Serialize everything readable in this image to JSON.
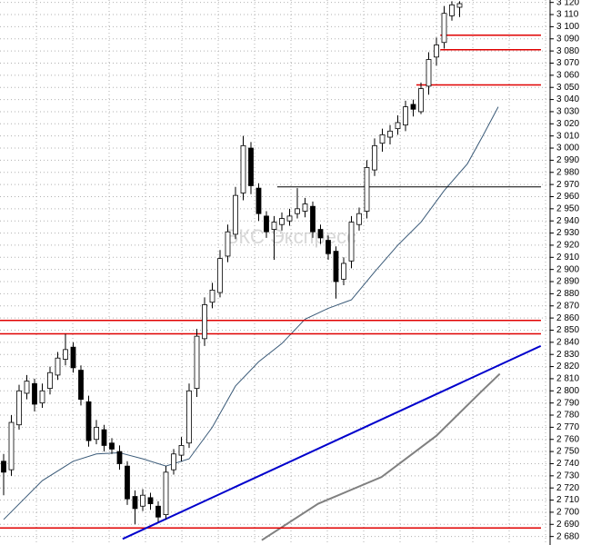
{
  "chart_data": {
    "type": "candlestick",
    "watermark": "БКС Экспресс",
    "ylim": [
      2673,
      3122
    ],
    "grid": true,
    "yticks": [
      {
        "value": 2680,
        "label": "2 680"
      },
      {
        "value": 2690,
        "label": "2 690"
      },
      {
        "value": 2700,
        "label": "2 700"
      },
      {
        "value": 2710,
        "label": "2 710"
      },
      {
        "value": 2720,
        "label": "2 720"
      },
      {
        "value": 2730,
        "label": "2 730"
      },
      {
        "value": 2740,
        "label": "2 740"
      },
      {
        "value": 2750,
        "label": "2 750"
      },
      {
        "value": 2760,
        "label": "2 760"
      },
      {
        "value": 2770,
        "label": "2 770"
      },
      {
        "value": 2780,
        "label": "2 780"
      },
      {
        "value": 2790,
        "label": "2 790"
      },
      {
        "value": 2800,
        "label": "2 800"
      },
      {
        "value": 2810,
        "label": "2 810"
      },
      {
        "value": 2820,
        "label": "2 820"
      },
      {
        "value": 2830,
        "label": "2 830"
      },
      {
        "value": 2840,
        "label": "2 840"
      },
      {
        "value": 2850,
        "label": "2 850"
      },
      {
        "value": 2860,
        "label": "2 860"
      },
      {
        "value": 2870,
        "label": "2 870"
      },
      {
        "value": 2880,
        "label": "2 880"
      },
      {
        "value": 2890,
        "label": "2 890"
      },
      {
        "value": 2900,
        "label": "2 900"
      },
      {
        "value": 2910,
        "label": "2 910"
      },
      {
        "value": 2920,
        "label": "2 920"
      },
      {
        "value": 2930,
        "label": "2 930"
      },
      {
        "value": 2940,
        "label": "2 940"
      },
      {
        "value": 2950,
        "label": "2 950"
      },
      {
        "value": 2960,
        "label": "2 960"
      },
      {
        "value": 2970,
        "label": "2 970"
      },
      {
        "value": 2980,
        "label": "2 980"
      },
      {
        "value": 2990,
        "label": "2 990"
      },
      {
        "value": 3000,
        "label": "3 000"
      },
      {
        "value": 3010,
        "label": "3 010"
      },
      {
        "value": 3020,
        "label": "3 020"
      },
      {
        "value": 3030,
        "label": "3 030"
      },
      {
        "value": 3040,
        "label": "3 040"
      },
      {
        "value": 3050,
        "label": "3 050"
      },
      {
        "value": 3060,
        "label": "3 060"
      },
      {
        "value": 3070,
        "label": "3 070"
      },
      {
        "value": 3080,
        "label": "3 080"
      },
      {
        "value": 3090,
        "label": "3 090"
      },
      {
        "value": 3100,
        "label": "3 100"
      },
      {
        "value": 3110,
        "label": "3 110"
      },
      {
        "value": 3120,
        "label": "3 120"
      }
    ],
    "up_color": "#ffffff",
    "down_color": "#000000",
    "open": [
      2742,
      2735,
      2772,
      2798,
      2806,
      2790,
      2802,
      2813,
      2826,
      2836,
      2817,
      2791,
      2760,
      2768,
      2757,
      2750,
      2738,
      2713,
      2705,
      2712,
      2705,
      2698,
      2735,
      2747,
      2757,
      2802,
      2843,
      2873,
      2881,
      2911,
      2929,
      2963,
      3000,
      2967,
      2944,
      2933,
      2937,
      2940,
      2946,
      2948,
      2952,
      2933,
      2924,
      2915,
      2892,
      2907,
      2937,
      2948,
      2982,
      3004,
      3009,
      3016,
      3019,
      3036,
      3030,
      3051,
      3075,
      3087,
      3109,
      3116
    ],
    "high": [
      2748,
      2780,
      2805,
      2813,
      2810,
      2806,
      2820,
      2832,
      2847,
      2840,
      2821,
      2796,
      2776,
      2772,
      2761,
      2755,
      2742,
      2718,
      2719,
      2716,
      2709,
      2738,
      2752,
      2762,
      2806,
      2851,
      2877,
      2889,
      2916,
      2937,
      2968,
      3010,
      3005,
      2971,
      2948,
      2944,
      2947,
      2950,
      2967,
      2959,
      2956,
      2937,
      2928,
      2919,
      2910,
      2944,
      2951,
      2990,
      3008,
      3016,
      3019,
      3027,
      3039,
      3040,
      3054,
      3079,
      3091,
      3117,
      3121,
      3121
    ],
    "low": [
      2714,
      2730,
      2768,
      2793,
      2783,
      2786,
      2797,
      2809,
      2821,
      2815,
      2788,
      2754,
      2756,
      2750,
      2748,
      2735,
      2706,
      2690,
      2701,
      2702,
      2692,
      2694,
      2731,
      2742,
      2753,
      2795,
      2837,
      2868,
      2877,
      2906,
      2925,
      2957,
      2962,
      2940,
      2926,
      2908,
      2932,
      2936,
      2942,
      2943,
      2926,
      2921,
      2908,
      2876,
      2887,
      2901,
      2932,
      2942,
      2977,
      2997,
      3003,
      3011,
      3014,
      3026,
      3028,
      3044,
      3068,
      3082,
      3105,
      3108
    ],
    "close": [
      2733,
      2774,
      2800,
      2808,
      2789,
      2800,
      2815,
      2827,
      2834,
      2819,
      2793,
      2759,
      2770,
      2755,
      2752,
      2740,
      2711,
      2703,
      2714,
      2707,
      2696,
      2733,
      2748,
      2755,
      2800,
      2845,
      2871,
      2883,
      2909,
      2931,
      2961,
      3002,
      2969,
      2946,
      2931,
      2939,
      2942,
      2944,
      2950,
      2954,
      2931,
      2926,
      2913,
      2890,
      2905,
      2939,
      2946,
      2984,
      3002,
      3011,
      3014,
      3021,
      3034,
      3032,
      3049,
      3073,
      3085,
      3111,
      3118,
      3119
    ],
    "lines": [
      {
        "color": "#3a5a78",
        "x": [
          0,
          5,
          9,
          12,
          15,
          18,
          21,
          24,
          27,
          30,
          33,
          36,
          39,
          42,
          45,
          48,
          51,
          54,
          57,
          60,
          62,
          64
        ],
        "values": [
          2694,
          2726,
          2742,
          2748,
          2749,
          2744,
          2738,
          2744,
          2770,
          2804,
          2824,
          2839,
          2859,
          2868,
          2875,
          2898,
          2920,
          2939,
          2965,
          2987,
          3010,
          3034
        ]
      },
      {
        "color": "#808080",
        "x": [
          33.4,
          40.7,
          48.9,
          56,
          61.9,
          64.2
        ],
        "values": [
          2677,
          2707,
          2729,
          2763,
          2800,
          2814
        ]
      }
    ],
    "trend": {
      "color": "#0000cc",
      "x": [
        15.4,
        69.5
      ],
      "values": [
        2678,
        2837
      ]
    },
    "levels": [
      {
        "value": 2858,
        "from": -0.5,
        "color": "#e00000"
      },
      {
        "value": 2847,
        "from": -0.5,
        "color": "#e00000"
      },
      {
        "value": 2687,
        "from": -0.5,
        "color": "#e00000"
      },
      {
        "value": 3093,
        "from": 56.5,
        "color": "#e00000"
      },
      {
        "value": 3081,
        "from": 56.5,
        "color": "#e00000"
      },
      {
        "value": 3052,
        "from": 53.4,
        "color": "#e00000"
      },
      {
        "value": 2968,
        "from": 35.4,
        "color": "#000000"
      }
    ]
  }
}
